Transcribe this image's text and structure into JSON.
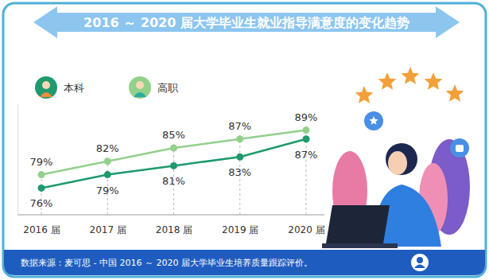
{
  "chart_data": {
    "type": "line",
    "title": "2016 ～ 2020 届大学毕业生就业指导满意度的变化趋势",
    "source": "数据来源：麦可思 - 中国 2016 ～ 2020 届大学毕业生培养质量跟踪评价。",
    "categories": [
      "2016 届",
      "2017 届",
      "2018 届",
      "2019 届",
      "2020 届"
    ],
    "series": [
      {
        "name": "本科",
        "color": "#1f9a6c",
        "values": [
          76,
          79,
          81,
          83,
          87
        ],
        "value_labels": [
          "76%",
          "79%",
          "81%",
          "83%",
          "87%"
        ],
        "marker": "circle",
        "line_style": "solid"
      },
      {
        "name": "高职",
        "color": "#93d08c",
        "values": [
          79,
          82,
          85,
          87,
          89
        ],
        "value_labels": [
          "79%",
          "82%",
          "85%",
          "87%",
          "89%"
        ],
        "marker": "circle",
        "line_style": "solid"
      }
    ],
    "ylim": [
      70,
      95
    ],
    "yticks": [],
    "grid": true,
    "data_labels": true,
    "tick_labels": "x",
    "legend": "top-left"
  }
}
